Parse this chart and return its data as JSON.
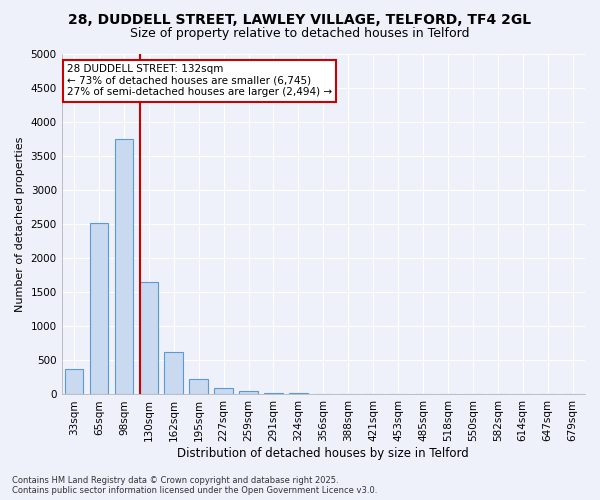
{
  "title1": "28, DUDDELL STREET, LAWLEY VILLAGE, TELFORD, TF4 2GL",
  "title2": "Size of property relative to detached houses in Telford",
  "xlabel": "Distribution of detached houses by size in Telford",
  "ylabel": "Number of detached properties",
  "bins": [
    "33sqm",
    "65sqm",
    "98sqm",
    "130sqm",
    "162sqm",
    "195sqm",
    "227sqm",
    "259sqm",
    "291sqm",
    "324sqm",
    "356sqm",
    "388sqm",
    "421sqm",
    "453sqm",
    "485sqm",
    "518sqm",
    "550sqm",
    "582sqm",
    "614sqm",
    "647sqm",
    "679sqm"
  ],
  "values": [
    375,
    2525,
    3750,
    1650,
    625,
    230,
    100,
    50,
    25,
    15,
    10,
    0,
    0,
    0,
    0,
    0,
    0,
    0,
    0,
    0,
    0
  ],
  "bar_color": "#c9d9ef",
  "bar_edge_color": "#5b9bd5",
  "vline_color": "#cc0000",
  "vline_bin_index": 3,
  "annotation_text": "28 DUDDELL STREET: 132sqm\n← 73% of detached houses are smaller (6,745)\n27% of semi-detached houses are larger (2,494) →",
  "annotation_box_facecolor": "#ffffff",
  "annotation_box_edgecolor": "#cc0000",
  "ylim": [
    0,
    5000
  ],
  "yticks": [
    0,
    500,
    1000,
    1500,
    2000,
    2500,
    3000,
    3500,
    4000,
    4500,
    5000
  ],
  "background_color": "#eef1fa",
  "grid_color": "#ffffff",
  "footnote": "Contains HM Land Registry data © Crown copyright and database right 2025.\nContains public sector information licensed under the Open Government Licence v3.0.",
  "title1_fontsize": 10,
  "title2_fontsize": 9,
  "xlabel_fontsize": 8.5,
  "ylabel_fontsize": 8,
  "tick_fontsize": 7.5,
  "annotation_fontsize": 7.5,
  "footnote_fontsize": 6
}
